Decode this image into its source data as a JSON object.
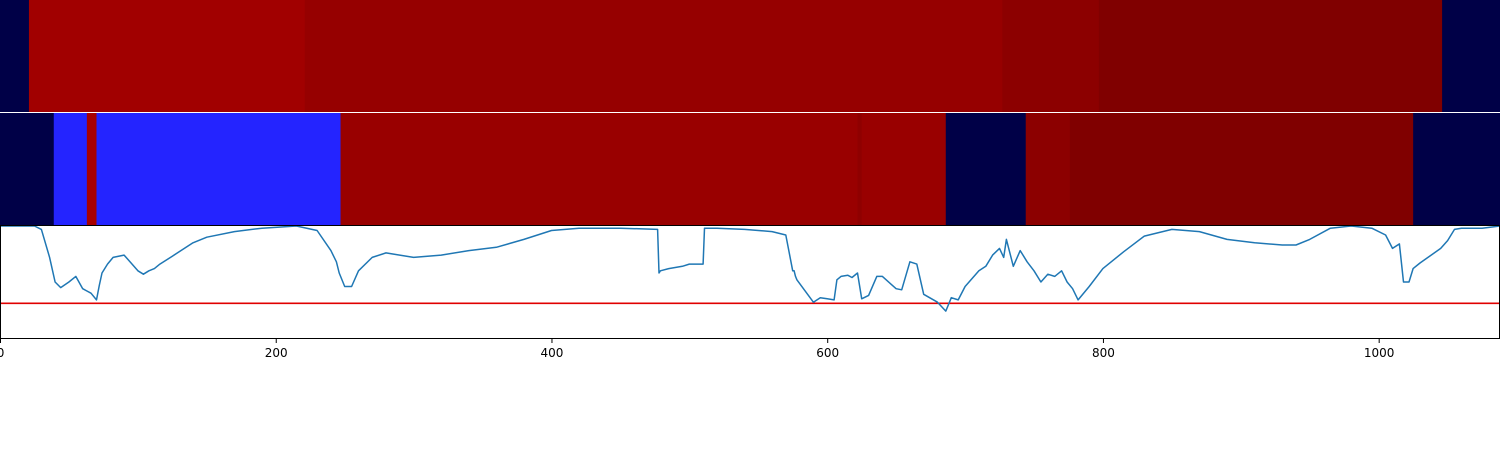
{
  "chart_data": [
    {
      "type": "heatmap",
      "xlim": [
        0,
        1088
      ],
      "segments": [
        {
          "start": 0,
          "end": 21,
          "color": "#000047"
        },
        {
          "start": 21,
          "end": 221,
          "color": "#a10000"
        },
        {
          "start": 221,
          "end": 727,
          "color": "#960000"
        },
        {
          "start": 727,
          "end": 797,
          "color": "#8c0000"
        },
        {
          "start": 797,
          "end": 1046,
          "color": "#800000"
        },
        {
          "start": 1046,
          "end": 1088,
          "color": "#000047"
        }
      ]
    },
    {
      "type": "heatmap",
      "xlim": [
        0,
        1088
      ],
      "segments": [
        {
          "start": 0,
          "end": 39,
          "color": "#000047"
        },
        {
          "start": 39,
          "end": 63,
          "color": "#2424ff"
        },
        {
          "start": 63,
          "end": 70,
          "color": "#a80000"
        },
        {
          "start": 70,
          "end": 247,
          "color": "#2424ff"
        },
        {
          "start": 247,
          "end": 622,
          "color": "#990000"
        },
        {
          "start": 622,
          "end": 625,
          "color": "#8f0000"
        },
        {
          "start": 625,
          "end": 686,
          "color": "#990000"
        },
        {
          "start": 686,
          "end": 744,
          "color": "#000047"
        },
        {
          "start": 744,
          "end": 776,
          "color": "#8c0000"
        },
        {
          "start": 776,
          "end": 1025,
          "color": "#800000"
        },
        {
          "start": 1025,
          "end": 1088,
          "color": "#000047"
        }
      ]
    },
    {
      "type": "line",
      "xlim": [
        0,
        1088
      ],
      "ylim": [
        0,
        1
      ],
      "grid": false,
      "x_ticks": [
        0,
        200,
        400,
        600,
        800,
        1000
      ],
      "x_tick_labels": [
        "0",
        "200",
        "400",
        "600",
        "800",
        "1000"
      ],
      "threshold": {
        "value": 0.31,
        "color": "#e00000"
      },
      "series_color": "#1f77b4",
      "x": [
        0,
        25,
        30,
        36,
        40,
        44,
        50,
        55,
        60,
        63,
        66,
        70,
        72,
        74,
        78,
        82,
        90,
        100,
        104,
        108,
        112,
        116,
        125,
        140,
        150,
        170,
        190,
        215,
        230,
        240,
        244,
        246,
        250,
        255,
        260,
        270,
        280,
        300,
        320,
        340,
        360,
        380,
        400,
        420,
        450,
        477,
        478,
        479,
        485,
        495,
        500,
        510,
        511,
        512,
        520,
        540,
        560,
        570,
        575,
        576,
        577,
        578,
        590,
        595,
        600,
        605,
        607,
        610,
        615,
        618,
        622,
        625,
        630,
        636,
        640,
        650,
        654,
        660,
        665,
        670,
        680,
        686,
        690,
        695,
        700,
        710,
        715,
        720,
        725,
        728,
        730,
        735,
        740,
        745,
        750,
        755,
        760,
        765,
        770,
        774,
        778,
        782,
        790,
        800,
        815,
        830,
        850,
        870,
        890,
        910,
        930,
        940,
        950,
        965,
        980,
        995,
        1005,
        1010,
        1015,
        1018,
        1022,
        1025,
        1030,
        1045,
        1050,
        1055,
        1060,
        1075,
        1088
      ],
      "y": [
        1.0,
        1.0,
        0.97,
        0.72,
        0.5,
        0.45,
        0.5,
        0.55,
        0.44,
        0.42,
        0.4,
        0.34,
        0.47,
        0.58,
        0.66,
        0.72,
        0.74,
        0.6,
        0.57,
        0.6,
        0.62,
        0.66,
        0.73,
        0.85,
        0.9,
        0.95,
        0.98,
        1.0,
        0.96,
        0.78,
        0.68,
        0.58,
        0.46,
        0.46,
        0.6,
        0.72,
        0.76,
        0.72,
        0.74,
        0.78,
        0.81,
        0.88,
        0.96,
        0.98,
        0.98,
        0.97,
        0.58,
        0.6,
        0.62,
        0.64,
        0.66,
        0.66,
        0.98,
        0.98,
        0.98,
        0.97,
        0.95,
        0.92,
        0.6,
        0.6,
        0.55,
        0.52,
        0.32,
        0.36,
        0.35,
        0.34,
        0.52,
        0.55,
        0.56,
        0.54,
        0.58,
        0.35,
        0.38,
        0.55,
        0.55,
        0.44,
        0.43,
        0.68,
        0.66,
        0.39,
        0.32,
        0.24,
        0.36,
        0.34,
        0.46,
        0.6,
        0.64,
        0.74,
        0.8,
        0.72,
        0.88,
        0.64,
        0.78,
        0.68,
        0.6,
        0.5,
        0.57,
        0.55,
        0.6,
        0.5,
        0.44,
        0.34,
        0.46,
        0.62,
        0.77,
        0.91,
        0.97,
        0.95,
        0.88,
        0.85,
        0.83,
        0.83,
        0.88,
        0.98,
        1.0,
        0.98,
        0.92,
        0.8,
        0.84,
        0.5,
        0.5,
        0.62,
        0.67,
        0.8,
        0.87,
        0.97,
        0.98,
        0.98,
        1.0
      ]
    }
  ]
}
